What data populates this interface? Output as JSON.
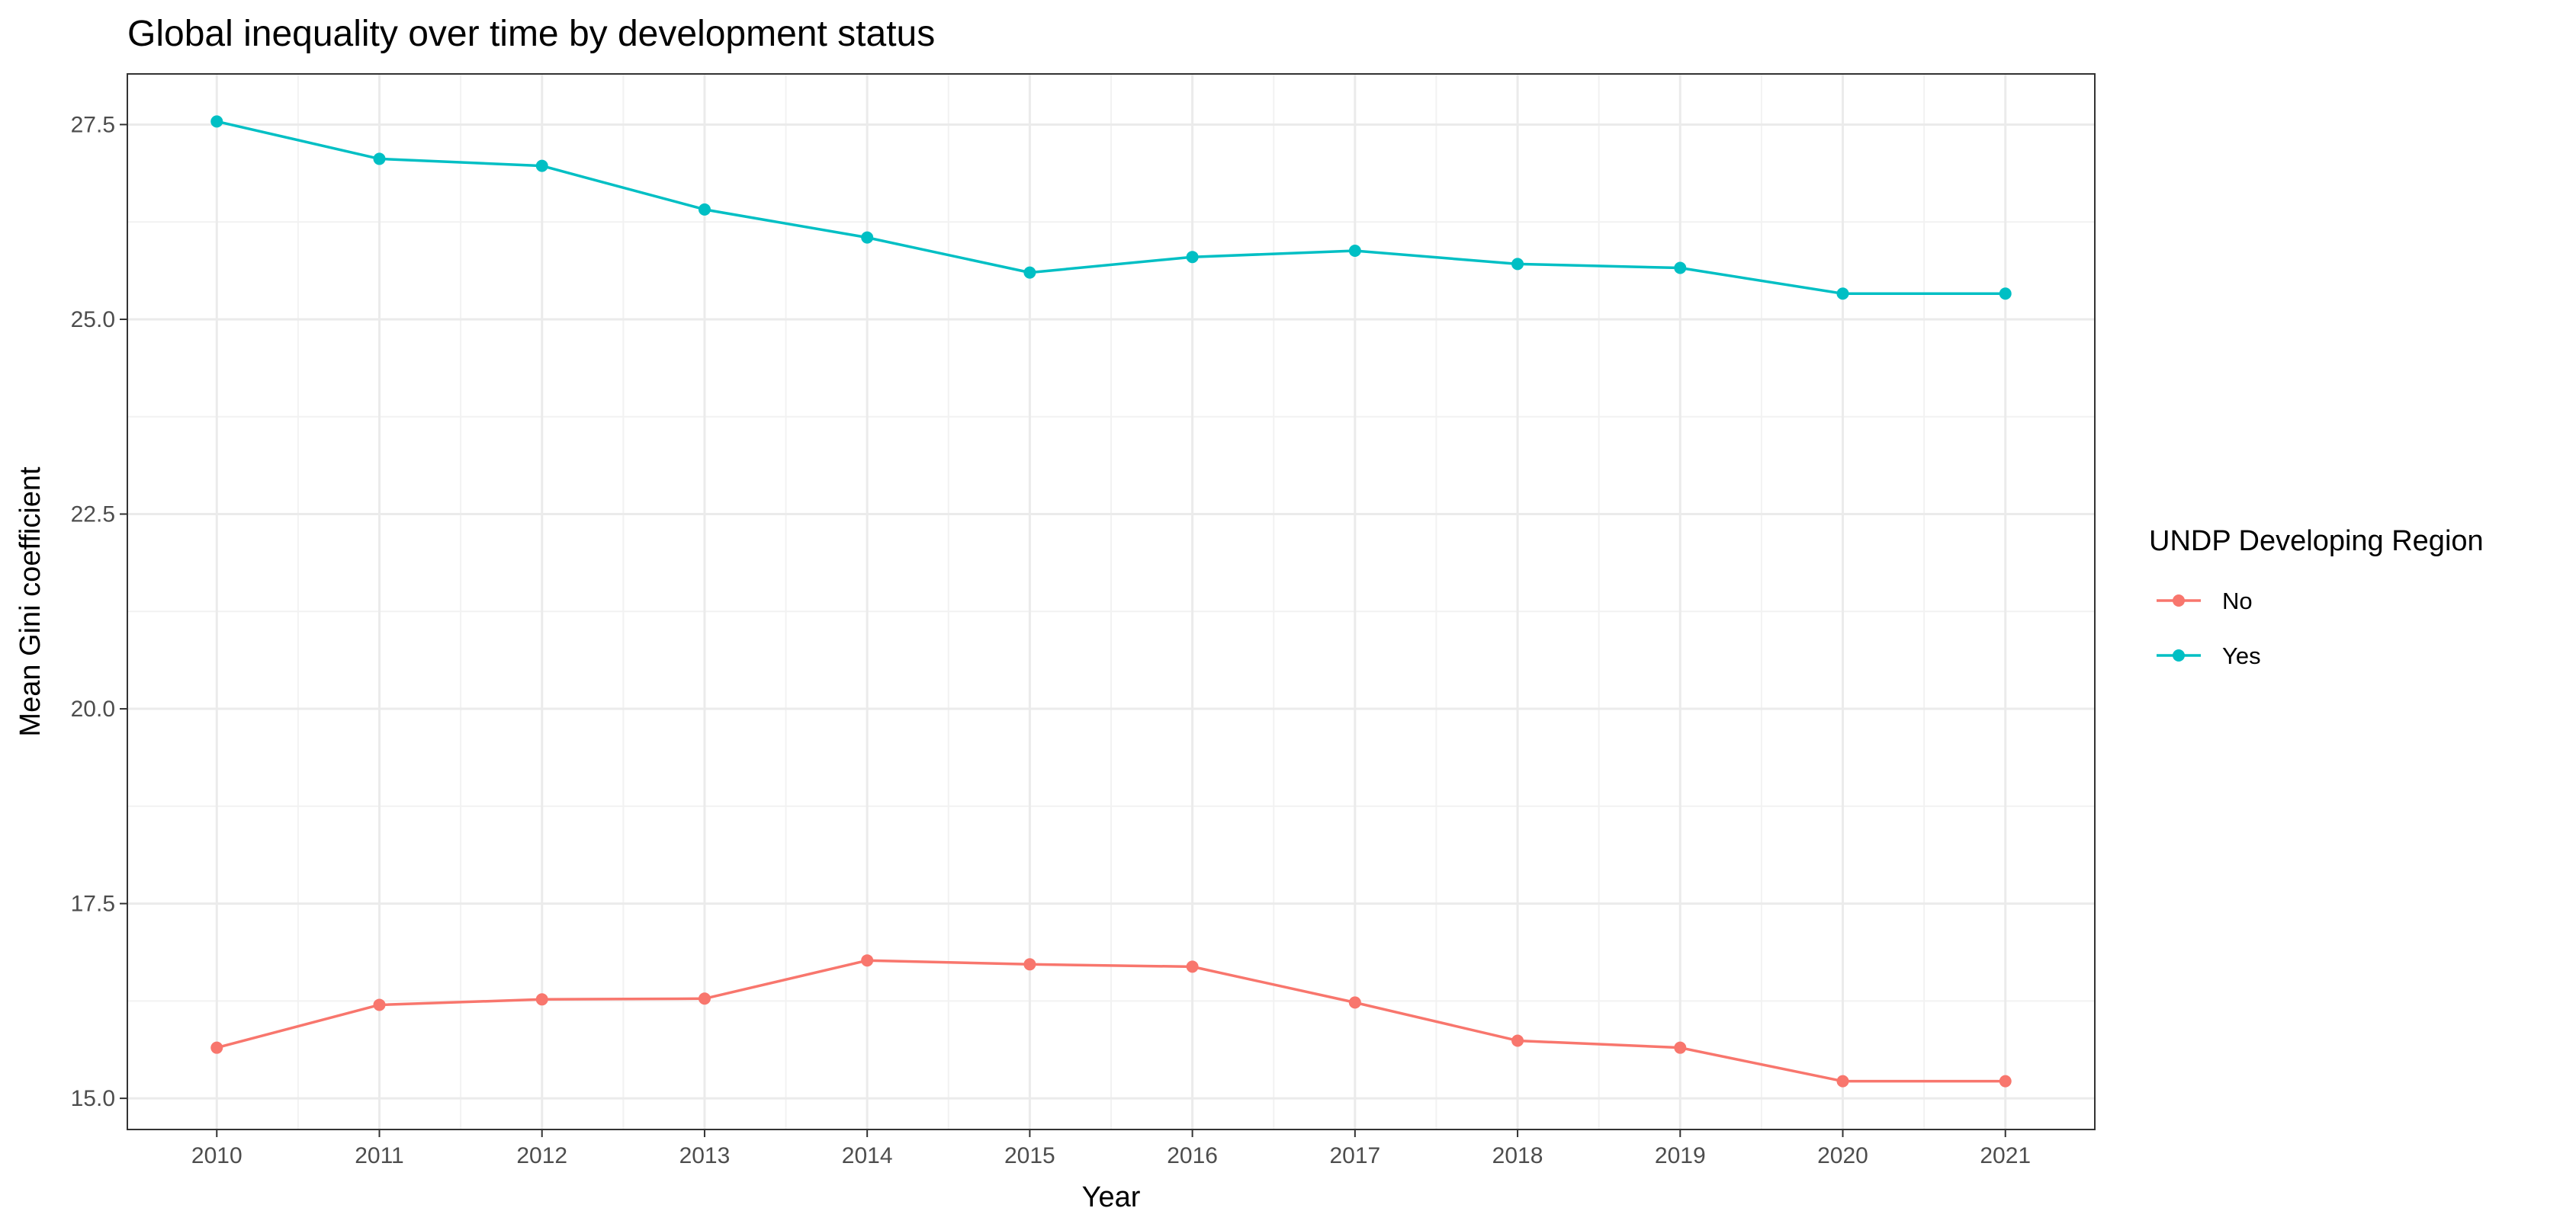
{
  "chart_data": {
    "type": "line",
    "title": "Global inequality over time by development status",
    "xlabel": "Year",
    "ylabel": "Mean Gini coefficient",
    "x": [
      2010,
      2011,
      2012,
      2013,
      2014,
      2015,
      2016,
      2017,
      2018,
      2019,
      2020,
      2021
    ],
    "x_tick_labels": [
      "2010",
      "2011",
      "2012",
      "2013",
      "2014",
      "2015",
      "2016",
      "2017",
      "2018",
      "2019",
      "2020",
      "2021"
    ],
    "y_ticks": [
      15.0,
      17.5,
      20.0,
      22.5,
      25.0,
      27.5
    ],
    "y_tick_labels": [
      "15.0",
      "17.5",
      "20.0",
      "22.5",
      "25.0",
      "27.5"
    ],
    "xlim": [
      2009.45,
      2021.55
    ],
    "ylim": [
      14.6,
      28.15
    ],
    "grid": true,
    "legend": {
      "title": "UNDP Developing Region",
      "placement": "right"
    },
    "series": [
      {
        "name": "No",
        "color": "#F8766D",
        "values": [
          15.65,
          16.2,
          16.27,
          16.28,
          16.77,
          16.72,
          16.69,
          16.23,
          15.74,
          15.65,
          15.22,
          15.22
        ]
      },
      {
        "name": "Yes",
        "color": "#00BFC4",
        "values": [
          27.54,
          27.06,
          26.97,
          26.41,
          26.05,
          25.6,
          25.8,
          25.88,
          25.71,
          25.66,
          25.33,
          25.33
        ]
      }
    ]
  }
}
